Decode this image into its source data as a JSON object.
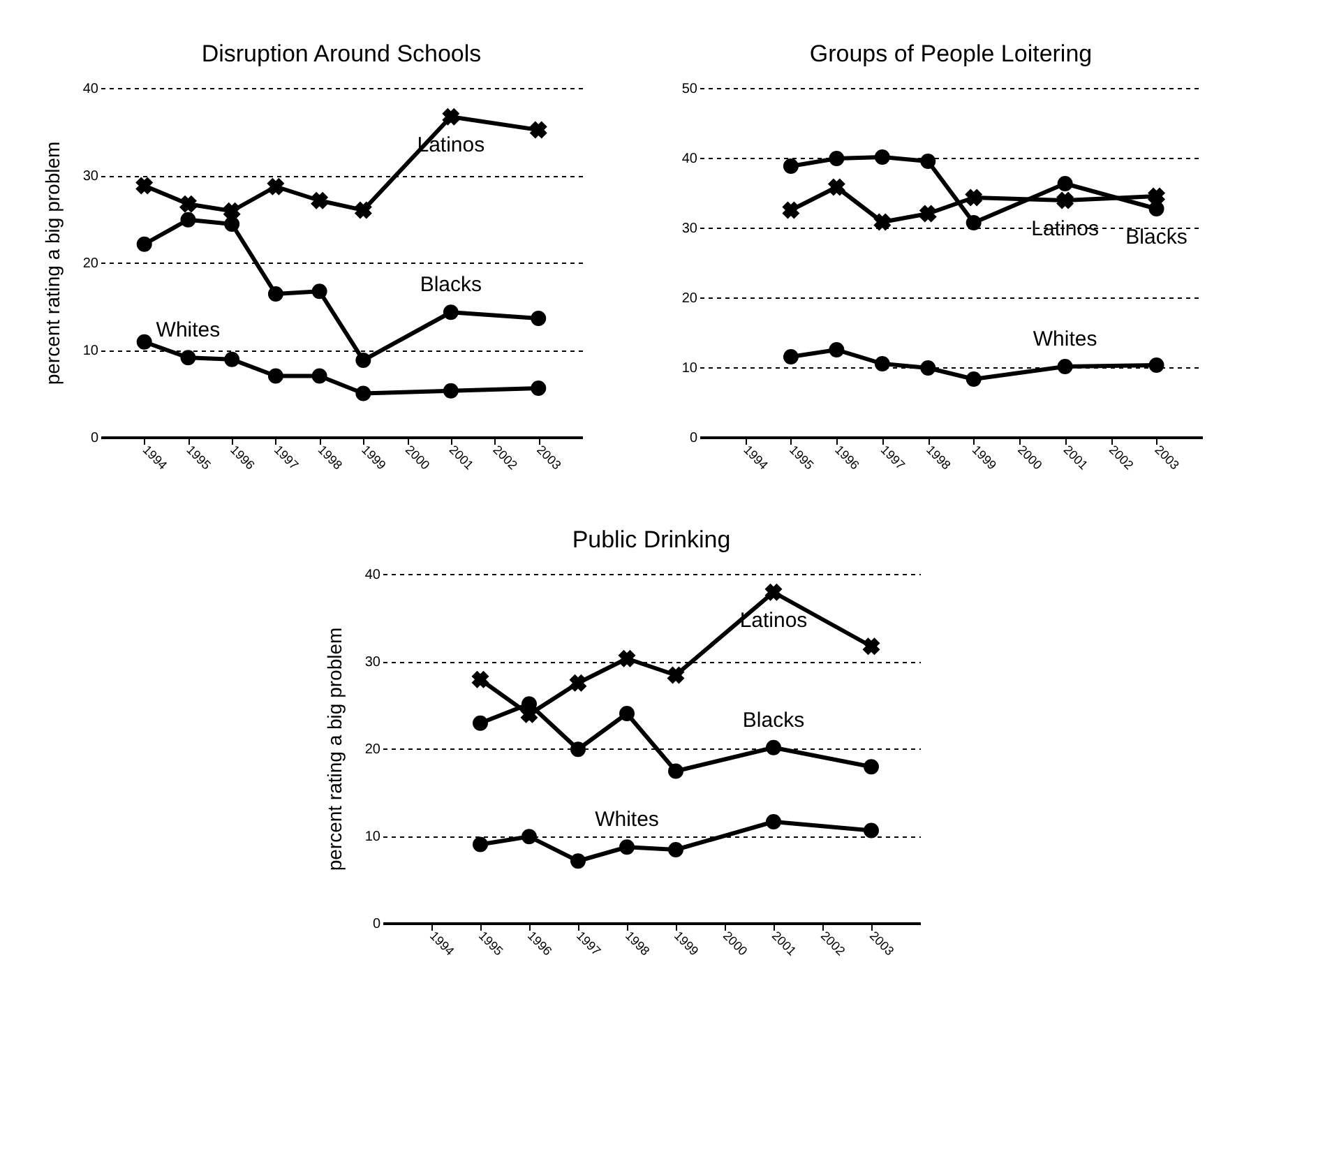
{
  "chart_data": [
    {
      "type": "line",
      "title": "Disruption Around Schools",
      "ylabel": "percent rating a big problem",
      "xlim": [
        1993,
        2004
      ],
      "xticks": [
        1994,
        1995,
        1996,
        1997,
        1998,
        1999,
        2000,
        2001,
        2002,
        2003
      ],
      "ylim": [
        0,
        40
      ],
      "yticks": [
        0,
        10,
        20,
        30,
        40
      ],
      "grid": "y",
      "line_style": "solid",
      "series": [
        {
          "name": "Latinos",
          "color": "#000000",
          "marker": "cross",
          "x": [
            1994,
            1995,
            1996,
            1997,
            1998,
            1999,
            2001,
            2003
          ],
          "values": [
            28.8,
            26.7,
            25.9,
            28.7,
            27.1,
            26.0,
            36.7,
            35.2
          ]
        },
        {
          "name": "Blacks",
          "color": "#000000",
          "marker": "circle",
          "x": [
            1994,
            1995,
            1996,
            1997,
            1998,
            1999,
            2001,
            2003
          ],
          "values": [
            22.1,
            24.9,
            24.4,
            16.4,
            16.7,
            8.8,
            14.3,
            13.6
          ]
        },
        {
          "name": "Whites",
          "color": "#000000",
          "marker": "circle",
          "x": [
            1994,
            1995,
            1996,
            1997,
            1998,
            1999,
            2001,
            2003
          ],
          "values": [
            10.9,
            9.1,
            8.9,
            7.0,
            7.0,
            5.0,
            5.3,
            5.6
          ]
        }
      ]
    },
    {
      "type": "line",
      "title": "Groups of People Loitering",
      "xlim": [
        1993,
        2004
      ],
      "xticks": [
        1994,
        1995,
        1996,
        1997,
        1998,
        1999,
        2000,
        2001,
        2002,
        2003
      ],
      "ylim": [
        0,
        50
      ],
      "yticks": [
        0,
        10,
        20,
        30,
        40,
        50
      ],
      "grid": "y",
      "line_style": "solid",
      "series": [
        {
          "name": "Blacks",
          "color": "#000000",
          "marker": "circle",
          "x": [
            1995,
            1996,
            1997,
            1998,
            1999,
            2001,
            2003
          ],
          "values": [
            38.8,
            39.9,
            40.1,
            39.5,
            30.7,
            36.3,
            32.7
          ]
        },
        {
          "name": "Latinos",
          "color": "#000000",
          "marker": "cross",
          "x": [
            1995,
            1996,
            1997,
            1998,
            1999,
            2001,
            2003
          ],
          "values": [
            32.5,
            35.8,
            30.8,
            32.0,
            34.3,
            33.9,
            34.5
          ]
        },
        {
          "name": "Whites",
          "color": "#000000",
          "marker": "circle",
          "x": [
            1995,
            1996,
            1997,
            1998,
            1999,
            2001,
            2003
          ],
          "values": [
            11.5,
            12.5,
            10.5,
            9.9,
            8.3,
            10.1,
            10.3
          ]
        }
      ]
    },
    {
      "type": "line",
      "title": "Public Drinking",
      "ylabel": "percent rating a big problem",
      "xlim": [
        1993,
        2004
      ],
      "xticks": [
        1994,
        1995,
        1996,
        1997,
        1998,
        1999,
        2000,
        2001,
        2002,
        2003
      ],
      "ylim": [
        0,
        40
      ],
      "yticks": [
        0,
        10,
        20,
        30,
        40
      ],
      "grid": "y",
      "line_style": "solid",
      "series": [
        {
          "name": "Latinos",
          "color": "#000000",
          "marker": "cross",
          "x": [
            1995,
            1996,
            1997,
            1998,
            1999,
            2001,
            2003
          ],
          "values": [
            27.9,
            23.9,
            27.5,
            30.3,
            28.4,
            37.9,
            31.7
          ]
        },
        {
          "name": "Blacks",
          "color": "#000000",
          "marker": "circle",
          "x": [
            1995,
            1996,
            1997,
            1998,
            1999,
            2001,
            2003
          ],
          "values": [
            22.9,
            25.1,
            19.9,
            24.0,
            17.4,
            20.1,
            17.9
          ]
        },
        {
          "name": "Whites",
          "color": "#000000",
          "marker": "circle",
          "x": [
            1995,
            1996,
            1997,
            1998,
            1999,
            2001,
            2003
          ],
          "values": [
            9.0,
            9.9,
            7.1,
            8.7,
            8.4,
            11.6,
            10.6
          ]
        }
      ]
    }
  ]
}
